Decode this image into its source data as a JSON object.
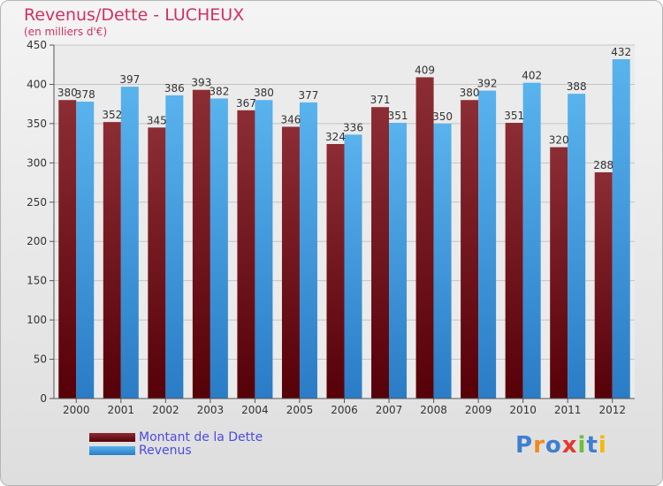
{
  "title": "Revenus/Dette - LUCHEUX",
  "subtitle": "(en milliers d'€)",
  "logo": {
    "text": "Proxiti"
  },
  "colors": {
    "dette": "#6b1a1f",
    "revenus": "#3d9be0",
    "title": "#d3315f",
    "legend_text": "#4a4ae6"
  },
  "chart_data": {
    "type": "bar",
    "title": "Revenus/Dette - LUCHEUX",
    "xlabel": "",
    "ylabel": "(en milliers d'€)",
    "categories": [
      "2000",
      "2001",
      "2002",
      "2003",
      "2004",
      "2005",
      "2006",
      "2007",
      "2008",
      "2009",
      "2010",
      "2011",
      "2012"
    ],
    "series": [
      {
        "name": "Montant de la Dette",
        "values": [
          380,
          352,
          345,
          393,
          367,
          346,
          324,
          371,
          409,
          380,
          351,
          320,
          288
        ]
      },
      {
        "name": "Revenus",
        "values": [
          378,
          397,
          386,
          382,
          380,
          377,
          336,
          351,
          350,
          392,
          402,
          388,
          432
        ]
      }
    ],
    "ylim": [
      0,
      450
    ],
    "yticks": [
      0,
      50,
      100,
      150,
      200,
      250,
      300,
      350,
      400,
      450
    ],
    "grid": true,
    "legend": "bottom-left"
  }
}
